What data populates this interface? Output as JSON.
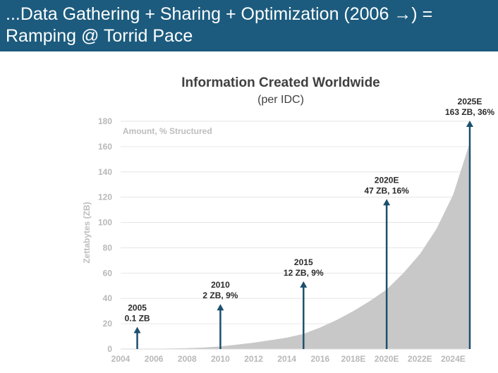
{
  "header": {
    "line1": "...Data Gathering + Sharing + Optimization (2006 →) =",
    "line2": "Ramping @ Torrid Pace"
  },
  "colors": {
    "header_bg": "#1c5b7e",
    "area_fill": "#c8c8c8",
    "arrow": "#1c4f6e",
    "axis_text": "#b8b8b8",
    "grid": "#e6e6e6",
    "label_text": "#2b2b2b"
  },
  "chart_data": {
    "type": "area",
    "title": "Information Created Worldwide",
    "subtitle": "(per IDC)",
    "ylabel": "Zettabytes (ZB)",
    "xlabel": "",
    "inner_label": "Amount, % Structured",
    "ylim": [
      0,
      180
    ],
    "yticks": [
      0,
      20,
      40,
      60,
      80,
      100,
      120,
      140,
      160,
      180
    ],
    "xlim": [
      2004,
      2025
    ],
    "xticks": [
      {
        "x": 2004,
        "label": "2004"
      },
      {
        "x": 2006,
        "label": "2006"
      },
      {
        "x": 2008,
        "label": "2008"
      },
      {
        "x": 2010,
        "label": "2010"
      },
      {
        "x": 2012,
        "label": "2012"
      },
      {
        "x": 2014,
        "label": "2014"
      },
      {
        "x": 2016,
        "label": "2016"
      },
      {
        "x": 2018,
        "label": "2018E"
      },
      {
        "x": 2020,
        "label": "2020E"
      },
      {
        "x": 2022,
        "label": "2022E"
      },
      {
        "x": 2024,
        "label": "2024E"
      }
    ],
    "grid": true,
    "series": [
      {
        "x": [
          2005,
          2006,
          2007,
          2008,
          2009,
          2010,
          2011,
          2012,
          2013,
          2014,
          2015,
          2016,
          2017,
          2018,
          2019,
          2020,
          2021,
          2022,
          2023,
          2024,
          2025
        ],
        "values": [
          0.1,
          0.2,
          0.4,
          0.7,
          1.2,
          2,
          3.5,
          5,
          7,
          9,
          12,
          17,
          23,
          30,
          38,
          47,
          60,
          75,
          95,
          122,
          163
        ]
      }
    ],
    "annotations": [
      {
        "x": 2005,
        "line1": "2005",
        "line2": "0.1 ZB",
        "arrow_top": 17
      },
      {
        "x": 2010,
        "line1": "2010",
        "line2": "2 ZB, 9%",
        "arrow_top": 35
      },
      {
        "x": 2015,
        "line1": "2015",
        "line2": "12 ZB, 9%",
        "arrow_top": 53
      },
      {
        "x": 2020,
        "line1": "2020E",
        "line2": "47 ZB, 16%",
        "arrow_top": 118
      },
      {
        "x": 2025,
        "line1": "2025E",
        "line2": "163 ZB, 36%",
        "arrow_top": 180
      }
    ]
  }
}
